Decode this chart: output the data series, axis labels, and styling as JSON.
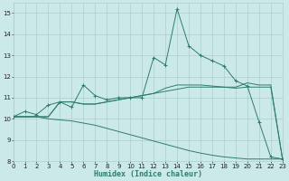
{
  "xlabel": "Humidex (Indice chaleur)",
  "x_values": [
    0,
    1,
    2,
    3,
    4,
    5,
    6,
    7,
    8,
    9,
    10,
    11,
    12,
    13,
    14,
    15,
    16,
    17,
    18,
    19,
    20,
    21,
    22,
    23
  ],
  "line1_y": [
    10.1,
    10.35,
    10.2,
    10.65,
    10.8,
    10.55,
    11.6,
    11.1,
    10.9,
    11.0,
    11.0,
    11.0,
    12.9,
    12.55,
    15.2,
    13.45,
    13.0,
    12.75,
    12.5,
    11.8,
    11.55,
    9.85,
    8.2,
    8.1
  ],
  "line2_y": [
    10.1,
    10.1,
    10.1,
    10.1,
    10.8,
    10.8,
    10.7,
    10.7,
    10.8,
    10.9,
    11.0,
    11.1,
    11.2,
    11.45,
    11.6,
    11.6,
    11.6,
    11.55,
    11.5,
    11.5,
    11.7,
    11.6,
    11.6,
    8.1
  ],
  "line3_y": [
    10.1,
    10.1,
    10.1,
    10.1,
    10.8,
    10.8,
    10.7,
    10.7,
    10.8,
    10.9,
    11.0,
    11.1,
    11.2,
    11.3,
    11.4,
    11.5,
    11.5,
    11.5,
    11.5,
    11.45,
    11.5,
    11.5,
    11.5,
    8.1
  ],
  "line4_y": [
    10.1,
    10.1,
    10.1,
    10.0,
    9.95,
    9.9,
    9.8,
    9.7,
    9.55,
    9.4,
    9.25,
    9.1,
    8.95,
    8.8,
    8.65,
    8.5,
    8.38,
    8.28,
    8.2,
    8.15,
    8.1,
    8.1,
    8.1,
    8.1
  ],
  "line_color": "#2d7d6e",
  "bg_color": "#cce9e9",
  "grid_color": "#aacfcf",
  "xlim": [
    0,
    23
  ],
  "ylim": [
    8,
    15.5
  ],
  "yticks": [
    8,
    9,
    10,
    11,
    12,
    13,
    14,
    15
  ],
  "xticks": [
    0,
    1,
    2,
    3,
    4,
    5,
    6,
    7,
    8,
    9,
    10,
    11,
    12,
    13,
    14,
    15,
    16,
    17,
    18,
    19,
    20,
    21,
    22,
    23
  ],
  "tick_fontsize": 5.0,
  "xlabel_fontsize": 6.0
}
